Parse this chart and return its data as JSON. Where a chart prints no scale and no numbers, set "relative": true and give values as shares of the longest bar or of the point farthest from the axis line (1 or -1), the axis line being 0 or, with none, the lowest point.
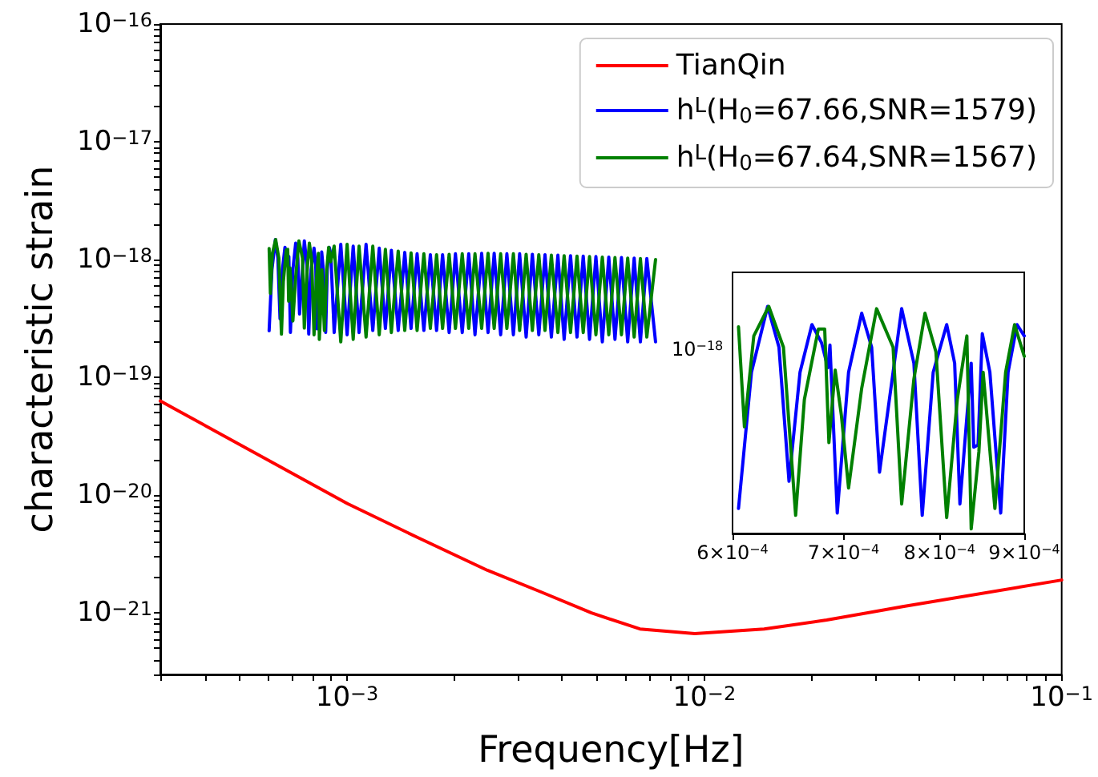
{
  "chart_data": [
    {
      "type": "line",
      "xlabel": "Frequency[Hz]",
      "ylabel": "characteristic strain",
      "log": "xy",
      "legend": "top right",
      "grid": false,
      "xlim": [
        0.0003,
        0.1
      ],
      "xticks": [
        {
          "value": 0.0003,
          "label": null
        },
        {
          "value": 0.0004,
          "label": null
        },
        {
          "value": 0.0005,
          "label": null
        },
        {
          "value": 0.0006,
          "label": null
        },
        {
          "value": 0.0007,
          "label": null
        },
        {
          "value": 0.0008,
          "label": null
        },
        {
          "value": 0.0009,
          "label": null
        },
        {
          "value": 0.001,
          "label": "10$^{−3}$"
        },
        {
          "value": 0.002,
          "label": null
        },
        {
          "value": 0.003,
          "label": null
        },
        {
          "value": 0.004,
          "label": null
        },
        {
          "value": 0.005,
          "label": null
        },
        {
          "value": 0.006,
          "label": null
        },
        {
          "value": 0.007,
          "label": null
        },
        {
          "value": 0.008,
          "label": null
        },
        {
          "value": 0.009,
          "label": null
        },
        {
          "value": 0.01,
          "label": "10$^{−2}$"
        },
        {
          "value": 0.02,
          "label": null
        },
        {
          "value": 0.03,
          "label": null
        },
        {
          "value": 0.04,
          "label": null
        },
        {
          "value": 0.05,
          "label": null
        },
        {
          "value": 0.06,
          "label": null
        },
        {
          "value": 0.07,
          "label": null
        },
        {
          "value": 0.08,
          "label": null
        },
        {
          "value": 0.09,
          "label": null
        },
        {
          "value": 0.1,
          "label": "10$^{−1}$"
        }
      ],
      "ylim": [
        3e-22,
        1e-16
      ],
      "yticks": [
        {
          "value": 3e-22,
          "label": null
        },
        {
          "value": 4e-22,
          "label": null
        },
        {
          "value": 5e-22,
          "label": null
        },
        {
          "value": 6e-22,
          "label": null
        },
        {
          "value": 7e-22,
          "label": null
        },
        {
          "value": 8e-22,
          "label": null
        },
        {
          "value": 9e-22,
          "label": null
        },
        {
          "value": 1e-21,
          "label": "10$^{−21}$"
        },
        {
          "value": 2e-21,
          "label": null
        },
        {
          "value": 3e-21,
          "label": null
        },
        {
          "value": 4e-21,
          "label": null
        },
        {
          "value": 5e-21,
          "label": null
        },
        {
          "value": 6e-21,
          "label": null
        },
        {
          "value": 7e-21,
          "label": null
        },
        {
          "value": 8e-21,
          "label": null
        },
        {
          "value": 9e-21,
          "label": null
        },
        {
          "value": 1e-20,
          "label": "10$^{−20}$"
        },
        {
          "value": 2e-20,
          "label": null
        },
        {
          "value": 3e-20,
          "label": null
        },
        {
          "value": 4e-20,
          "label": null
        },
        {
          "value": 5e-20,
          "label": null
        },
        {
          "value": 6e-20,
          "label": null
        },
        {
          "value": 7e-20,
          "label": null
        },
        {
          "value": 8e-20,
          "label": null
        },
        {
          "value": 9e-20,
          "label": null
        },
        {
          "value": 1e-19,
          "label": "10$^{−19}$"
        },
        {
          "value": 2e-19,
          "label": null
        },
        {
          "value": 3e-19,
          "label": null
        },
        {
          "value": 4e-19,
          "label": null
        },
        {
          "value": 5e-19,
          "label": null
        },
        {
          "value": 6e-19,
          "label": null
        },
        {
          "value": 7e-19,
          "label": null
        },
        {
          "value": 8e-19,
          "label": null
        },
        {
          "value": 9e-19,
          "label": null
        },
        {
          "value": 1e-18,
          "label": "10$^{−18}$"
        },
        {
          "value": 2e-18,
          "label": null
        },
        {
          "value": 3e-18,
          "label": null
        },
        {
          "value": 4e-18,
          "label": null
        },
        {
          "value": 5e-18,
          "label": null
        },
        {
          "value": 6e-18,
          "label": null
        },
        {
          "value": 7e-18,
          "label": null
        },
        {
          "value": 8e-18,
          "label": null
        },
        {
          "value": 9e-18,
          "label": null
        },
        {
          "value": 1e-17,
          "label": "10$^{−17}$"
        },
        {
          "value": 2e-17,
          "label": null
        },
        {
          "value": 3e-17,
          "label": null
        },
        {
          "value": 4e-17,
          "label": null
        },
        {
          "value": 5e-17,
          "label": null
        },
        {
          "value": 6e-17,
          "label": null
        },
        {
          "value": 7e-17,
          "label": null
        },
        {
          "value": 8e-17,
          "label": null
        },
        {
          "value": 9e-17,
          "label": null
        },
        {
          "value": 1e-16,
          "label": "10$^{−16}$"
        }
      ],
      "series": [
        {
          "name": "TianQin",
          "color": "#ff0000",
          "x": [
            0.0003,
            0.001,
            0.00158,
            0.00247,
            0.0035,
            0.00483,
            0.0066,
            0.0094,
            0.0147,
            0.022,
            0.0359,
            0.1
          ],
          "values": [
            6.3e-20,
            8.5e-21,
            4.35e-21,
            2.3e-21,
            1.5e-21,
            1e-21,
            7.3e-22,
            6.67e-22,
            7.3e-22,
            8.7e-22,
            1.13e-21,
            1.9e-21
          ]
        },
        {
          "name": "h$^{L}$(H$_{0}$=67.66,SNR=1579)",
          "color": "#0000ff",
          "x": [
            0.000605,
            0.000616,
            0.00063,
            0.00064,
            0.000649,
            0.000659,
            0.00067,
            0.000679,
            0.000685,
            0.000687,
            0.000694,
            0.000705,
            0.000718,
            0.000728,
            0.000736,
            0.00075,
            0.000759,
            0.000772,
            0.000781,
            0.000793,
            0.000808,
            0.000817,
            0.000823,
            0.000836,
            0.000839,
            0.000844,
            0.000849,
            0.000858,
            0.000871,
            0.00088,
            0.000891,
            0.0009,
            0.00092,
            0.00096,
            0.001,
            0.00104,
            0.00108,
            0.00113,
            0.00118,
            0.00123,
            0.00128,
            0.00133,
            0.00139,
            0.00145,
            0.00151,
            0.00157,
            0.00164,
            0.00171,
            0.00178,
            0.00185,
            0.00193,
            0.00201,
            0.0021,
            0.00219,
            0.00228,
            0.00238,
            0.00248,
            0.00258,
            0.00269,
            0.0028,
            0.00292,
            0.00304,
            0.00317,
            0.0033,
            0.00344,
            0.00358,
            0.00373,
            0.00389,
            0.00405,
            0.00422,
            0.0044,
            0.00458,
            0.00477,
            0.00497,
            0.00518,
            0.0054,
            0.00562,
            0.00586,
            0.0061,
            0.00636,
            0.00662,
            0.0069,
            0.0073
          ],
          "values": [
            2.49e-19,
            8.2e-19,
            1.48e-18,
            1.03e-18,
            3.15e-19,
            8.2e-19,
            1.27e-18,
            1.08e-18,
            8.6e-19,
            1.06e-18,
            2.41e-19,
            8.2e-19,
            1.38e-18,
            1.03e-18,
            3.45e-19,
            8.2e-19,
            1.44e-18,
            9e-19,
            2.33e-19,
            8.2e-19,
            1.25e-18,
            9e-19,
            2.58e-19,
            9e-19,
            4.29e-19,
            4.39e-19,
            1.16e-18,
            8.2e-19,
            2.41e-19,
            8.2e-19,
            1.27e-18,
            1.13e-18,
            2.4e-19,
            1.35e-18,
            2.3e-19,
            1.3e-18,
            2.4e-19,
            1.35e-18,
            2.5e-19,
            1.25e-18,
            2.6e-19,
            1.2e-18,
            2.5e-19,
            1.15e-18,
            2.6e-19,
            1.12e-18,
            2.5e-19,
            1.1e-18,
            2.5e-19,
            1.1e-18,
            2.4e-19,
            1.12e-18,
            2.4e-19,
            1.12e-18,
            2.3e-19,
            1.13e-18,
            2.4e-19,
            1.13e-18,
            2.3e-19,
            1.12e-18,
            2.3e-19,
            1.12e-18,
            2.2e-19,
            1.11e-18,
            2.3e-19,
            1.1e-18,
            2.2e-19,
            1.09e-18,
            2.1e-19,
            1.08e-18,
            2.2e-19,
            1.07e-18,
            2.1e-19,
            1.06e-18,
            2e-19,
            1.05e-18,
            2.1e-19,
            1.04e-18,
            2e-19,
            1.03e-18,
            2e-19,
            1.02e-18,
            2e-19
          ]
        },
        {
          "name": "h$^{L}$(H$_{0}$=67.64,SNR=1567)",
          "color": "#008000",
          "x": [
            0.000605,
            0.00061,
            0.000618,
            0.000631,
            0.000644,
            0.000655,
            0.000663,
            0.000676,
            0.000682,
            0.000686,
            0.000692,
            0.000698,
            0.000705,
            0.000718,
            0.000733,
            0.00075,
            0.000759,
            0.000772,
            0.000784,
            0.000796,
            0.000808,
            0.00082,
            0.000831,
            0.000836,
            0.000845,
            0.00085,
            0.000864,
            0.000877,
            0.000888,
            0.0009,
            0.00092,
            0.00096,
            0.001,
            0.00104,
            0.00108,
            0.00113,
            0.00118,
            0.00123,
            0.00128,
            0.00133,
            0.00139,
            0.00145,
            0.00151,
            0.00157,
            0.00164,
            0.00171,
            0.00178,
            0.00185,
            0.00193,
            0.00201,
            0.0021,
            0.00219,
            0.00228,
            0.00238,
            0.00248,
            0.00258,
            0.00269,
            0.0028,
            0.00292,
            0.00304,
            0.00317,
            0.0033,
            0.00344,
            0.00358,
            0.00373,
            0.00389,
            0.00405,
            0.00422,
            0.0044,
            0.00458,
            0.00477,
            0.00497,
            0.00518,
            0.0054,
            0.00562,
            0.00586,
            0.0061,
            0.00636,
            0.00662,
            0.0069,
            0.0073
          ],
          "values": [
            1.24e-18,
            5.16e-19,
            1.13e-18,
            1.48e-18,
            1.03e-18,
            2.33e-19,
            6.5e-19,
            1.21e-18,
            1.22e-18,
            4.43e-19,
            8.5e-19,
            5.66e-19,
            3.01e-19,
            7.13e-19,
            1.44e-18,
            1.03e-18,
            2.62e-19,
            7.8e-19,
            1.38e-18,
            9.9e-19,
            2.3e-19,
            6.5e-19,
            1.13e-18,
            2.1e-19,
            4.1e-19,
            8.2e-19,
            2.5e-19,
            8.2e-19,
            1.27e-18,
            9.6e-19,
            1.3e-18,
            2e-19,
            1.35e-18,
            2.1e-19,
            1.3e-18,
            2.2e-19,
            1.3e-18,
            2.3e-19,
            1.22e-18,
            2.4e-19,
            1.18e-18,
            2.5e-19,
            1.14e-18,
            2.5e-19,
            1.12e-18,
            2.6e-19,
            1.1e-18,
            2.6e-19,
            1.11e-18,
            2.6e-19,
            1.12e-18,
            2.6e-19,
            1.12e-18,
            2.6e-19,
            1.13e-18,
            2.6e-19,
            1.12e-18,
            2.6e-19,
            1.12e-18,
            2.5e-19,
            1.11e-18,
            2.5e-19,
            1.1e-18,
            2.5e-19,
            1.09e-18,
            2.4e-19,
            1.08e-18,
            2.4e-19,
            1.07e-18,
            2.4e-19,
            1.06e-18,
            2.3e-19,
            1.05e-18,
            2.3e-19,
            1.04e-18,
            2.3e-19,
            1.03e-18,
            2.2e-19,
            1.02e-18,
            2.2e-19,
            1e-18
          ]
        }
      ]
    },
    {
      "type": "line",
      "log": "x",
      "grid": false,
      "relative": true,
      "annotations": [
        "10$^{−18}$"
      ],
      "xlim": [
        0.0006,
        0.0009
      ],
      "xticks": [
        {
          "value": 0.0006,
          "label": "6×10$^{−4}$"
        },
        {
          "value": 0.0007,
          "label": "7×10$^{−4}$"
        },
        {
          "value": 0.0008,
          "label": "8×10$^{−4}$"
        },
        {
          "value": 0.0009,
          "label": "9×10$^{−4}$"
        }
      ],
      "series": [
        {
          "color": "#0000ff",
          "x": [
            0.000605,
            0.000616,
            0.00063,
            0.00064,
            0.000649,
            0.000659,
            0.00067,
            0.000679,
            0.000685,
            0.000687,
            0.000694,
            0.000705,
            0.000718,
            0.000728,
            0.000736,
            0.00075,
            0.000759,
            0.000772,
            0.000781,
            0.000793,
            0.000808,
            0.000817,
            0.000823,
            0.000836,
            0.000839,
            0.000844,
            0.000849,
            0.000858,
            0.000871,
            0.00088,
            0.000891,
            0.0009
          ],
          "values": [
            0.11,
            0.71,
            1,
            0.82,
            0.23,
            0.71,
            0.92,
            0.84,
            0.73,
            0.83,
            0.09,
            0.71,
            0.97,
            0.82,
            0.27,
            0.71,
            0.99,
            0.75,
            0.08,
            0.71,
            0.92,
            0.75,
            0.13,
            0.75,
            0.38,
            0.39,
            0.88,
            0.71,
            0.09,
            0.71,
            0.92,
            0.87
          ]
        },
        {
          "color": "#008000",
          "x": [
            0.000605,
            0.00061,
            0.000618,
            0.000631,
            0.000644,
            0.000655,
            0.000663,
            0.000676,
            0.000682,
            0.000686,
            0.000692,
            0.000698,
            0.000705,
            0.000718,
            0.000733,
            0.00075,
            0.000759,
            0.000772,
            0.000784,
            0.000796,
            0.000808,
            0.00082,
            0.000831,
            0.000836,
            0.000845,
            0.00085,
            0.000864,
            0.000877,
            0.000888,
            0.0009
          ],
          "values": [
            0.91,
            0.47,
            0.87,
            1,
            0.82,
            0.08,
            0.59,
            0.9,
            0.9,
            0.4,
            0.72,
            0.52,
            0.2,
            0.64,
            0.99,
            0.82,
            0.13,
            0.68,
            0.97,
            0.8,
            0.07,
            0.59,
            0.87,
            0.02,
            0.36,
            0.71,
            0.11,
            0.71,
            0.92,
            0.78
          ]
        }
      ]
    }
  ]
}
